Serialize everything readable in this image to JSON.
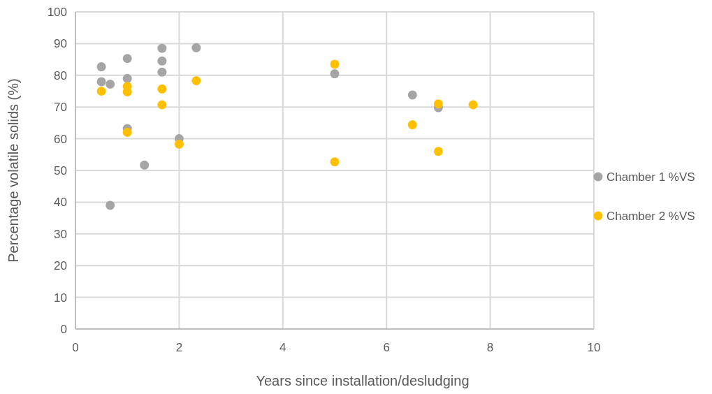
{
  "chart_data": {
    "type": "scatter",
    "xlabel": "Years since installation/desludging",
    "ylabel": "Percentage volatile solids (%)",
    "xlim": [
      0,
      10
    ],
    "xticks": [
      0,
      2,
      4,
      6,
      8,
      10
    ],
    "ylim": [
      0,
      100
    ],
    "yticks": [
      0,
      10,
      20,
      30,
      40,
      50,
      60,
      70,
      80,
      90,
      100
    ],
    "grid": true,
    "legend": "right",
    "marker": "circle",
    "series": [
      {
        "name": "Chamber 1 %VS",
        "color": "#a5a5a5",
        "x": [
          0.5,
          0.5,
          0.67,
          1,
          1,
          1,
          0.67,
          1.33,
          1.67,
          1.67,
          1.67,
          2,
          2.33,
          5,
          6.5,
          7
        ],
        "values": [
          82.7,
          78,
          77.2,
          85.3,
          79,
          63.2,
          39,
          51.7,
          88.5,
          84.5,
          81,
          60,
          88.7,
          80.5,
          73.8,
          69.8
        ]
      },
      {
        "name": "Chamber 2 %VS",
        "color": "#ffc000",
        "x": [
          0.5,
          1,
          1,
          1,
          1.67,
          1.67,
          2,
          2.33,
          5,
          5,
          6.5,
          7,
          7,
          7.67
        ],
        "values": [
          75,
          76.5,
          74.8,
          62,
          75.7,
          70.7,
          58.3,
          78.3,
          83.5,
          52.7,
          64.4,
          71,
          56,
          70.7
        ]
      }
    ]
  }
}
